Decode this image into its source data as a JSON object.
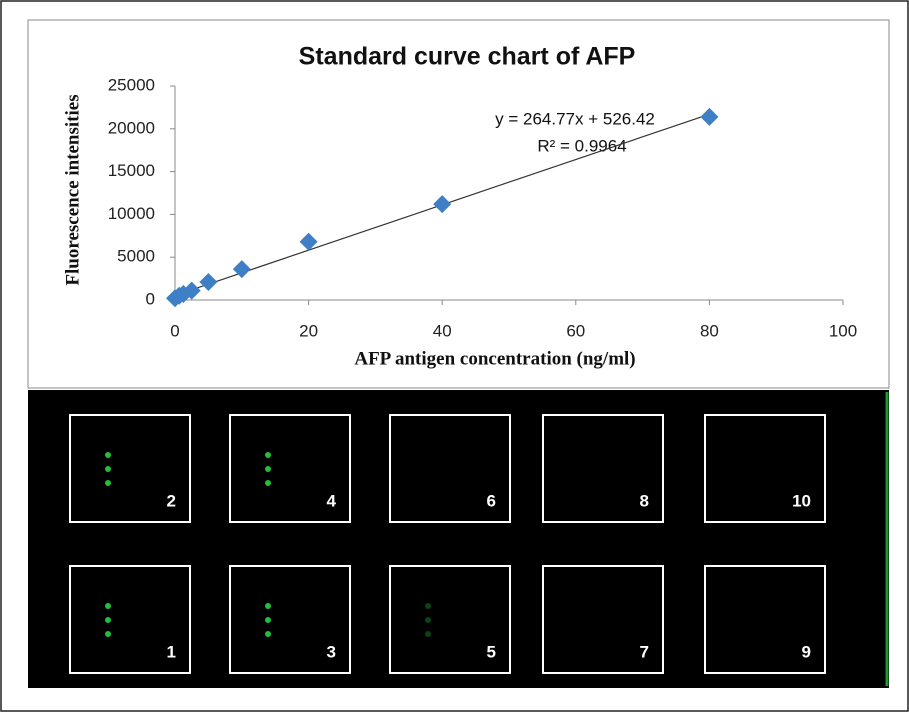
{
  "chart_data": {
    "type": "scatter",
    "title": "Standard curve chart of AFP",
    "x_label": "AFP antigen concentration (ng/ml)",
    "y_label": "Fluorescence intensities",
    "x": [
      0,
      0.625,
      1.25,
      2.5,
      5,
      10,
      20,
      40,
      80
    ],
    "values": [
      200,
      500,
      700,
      1100,
      2100,
      3600,
      6800,
      11200,
      21400
    ],
    "color": "#3f7fc6",
    "xlim": [
      0,
      100
    ],
    "xticks": [
      0,
      20,
      40,
      60,
      80,
      100
    ],
    "ylim": [
      0,
      25000
    ],
    "yticks": [
      0,
      5000,
      10000,
      15000,
      20000,
      25000
    ],
    "grid": false,
    "trendline": {
      "slope": 264.77,
      "intercept": 526.42,
      "equation": "y = 264.77x + 526.42",
      "r2": "R² = 0.9964"
    }
  },
  "image_panel": {
    "top_labels": [
      "2",
      "4",
      "6",
      "8",
      "10"
    ],
    "bottom_labels": [
      "1",
      "3",
      "5",
      "7",
      "9"
    ]
  }
}
